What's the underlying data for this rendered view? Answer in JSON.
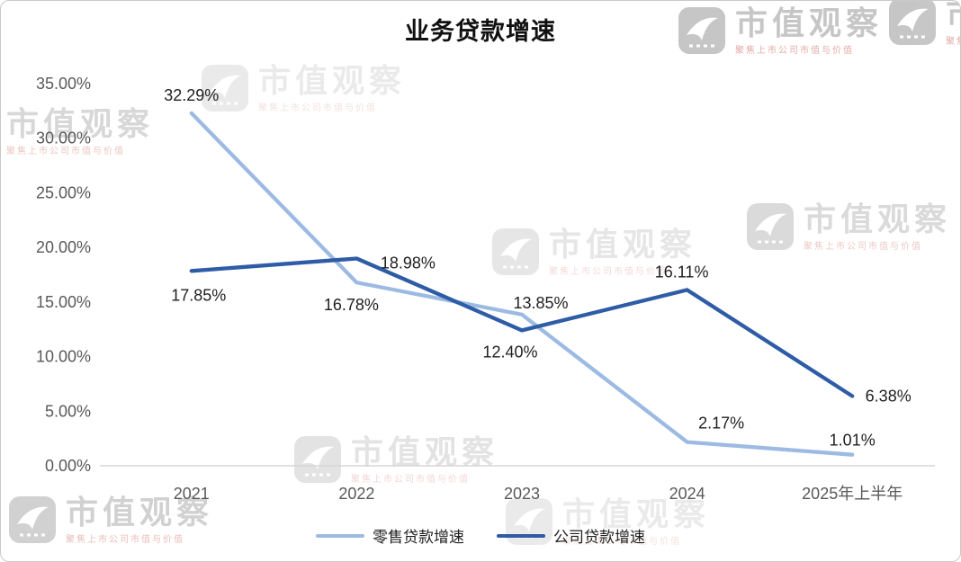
{
  "chart_data": {
    "type": "line",
    "title": "业务贷款增速",
    "categories": [
      "2021",
      "2022",
      "2023",
      "2024",
      "2025年上半年"
    ],
    "series": [
      {
        "name": "零售贷款增速",
        "color": "#9DBAE3",
        "values": [
          32.29,
          16.78,
          13.85,
          2.17,
          1.01
        ],
        "labels": [
          "32.29%",
          "16.78%",
          "13.85%",
          "2.17%",
          "1.01%"
        ]
      },
      {
        "name": "公司贷款增速",
        "color": "#2E5CA6",
        "values": [
          17.85,
          18.98,
          12.4,
          16.11,
          6.38
        ],
        "labels": [
          "17.85%",
          "18.98%",
          "12.40%",
          "16.11%",
          "6.38%"
        ]
      }
    ],
    "y_axis": {
      "min": 0,
      "max": 35,
      "step": 5,
      "tick_labels": [
        "0.00%",
        "5.00%",
        "10.00%",
        "15.00%",
        "20.00%",
        "25.00%",
        "30.00%",
        "35.00%"
      ]
    },
    "x_axis_line_color": "#d6d6d6",
    "tick_label_color": "#595959",
    "data_label_color": "#1f1f1f",
    "legend_position": "bottom",
    "grid": false
  },
  "watermark": {
    "title": "市值观察",
    "subtitle": "聚焦上市公司市值与价值"
  }
}
